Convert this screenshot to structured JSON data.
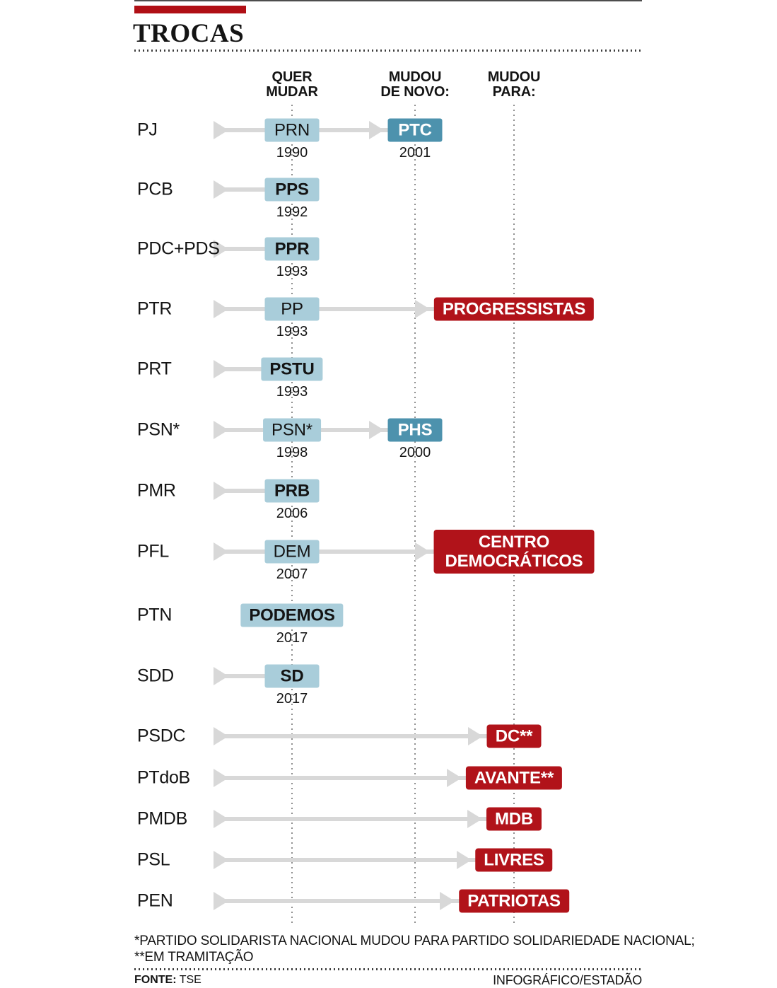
{
  "title": "TROCAS",
  "columns": [
    {
      "text": "QUER\nMUDAR"
    },
    {
      "text": "MUDOU\nDE NOVO:"
    },
    {
      "text": "MUDOU\nPARA:"
    }
  ],
  "rows": [
    {
      "label": "PJ",
      "arrow": true,
      "stage1": {
        "text": "PRN",
        "year": "1990",
        "bold": false
      },
      "stage2": {
        "text": "PTC",
        "year": "2001"
      }
    },
    {
      "label": "PCB",
      "arrow": true,
      "stage1": {
        "text": "PPS",
        "year": "1992",
        "bold": true
      }
    },
    {
      "label": "PDC+PDS",
      "arrow": true,
      "stage1": {
        "text": "PPR",
        "year": "1993",
        "bold": true
      }
    },
    {
      "label": "PTR",
      "arrow": true,
      "stage1": {
        "text": "PP",
        "year": "1993",
        "bold": false
      },
      "result": {
        "text": "PROGRESSISTAS"
      }
    },
    {
      "label": "PRT",
      "arrow": true,
      "stage1": {
        "text": "PSTU",
        "year": "1993",
        "bold": true
      }
    },
    {
      "label": "PSN*",
      "arrow": true,
      "stage1": {
        "text": "PSN*",
        "year": "1998",
        "bold": false
      },
      "stage2": {
        "text": "PHS",
        "year": "2000"
      }
    },
    {
      "label": "PMR",
      "arrow": true,
      "stage1": {
        "text": "PRB",
        "year": "2006",
        "bold": true
      }
    },
    {
      "label": "PFL",
      "arrow": true,
      "stage1": {
        "text": "DEM",
        "year": "2007",
        "bold": false
      },
      "result": {
        "text": "CENTRO\nDEMOCRÁTICOS"
      }
    },
    {
      "label": "PTN",
      "arrow": false,
      "stage1": {
        "text": "PODEMOS",
        "year": "2017",
        "bold": true
      }
    },
    {
      "label": "SDD",
      "arrow": true,
      "stage1": {
        "text": "SD",
        "year": "2017",
        "bold": true
      }
    },
    {
      "label": "PSDC",
      "arrow": true,
      "result": {
        "text": "DC**"
      }
    },
    {
      "label": "PTdoB",
      "arrow": true,
      "result": {
        "text": "AVANTE**"
      }
    },
    {
      "label": "PMDB",
      "arrow": true,
      "result": {
        "text": "MDB"
      }
    },
    {
      "label": "PSL",
      "arrow": true,
      "result": {
        "text": "LIVRES"
      }
    },
    {
      "label": "PEN",
      "arrow": true,
      "result": {
        "text": "PATRIOTAS"
      }
    }
  ],
  "footnotes": [
    "*PARTIDO SOLIDARISTA NACIONAL MUDOU PARA PARTIDO SOLIDARIEDADE NACIONAL;",
    "**EM TRAMITAÇÃO"
  ],
  "source": {
    "label": "FONTE:",
    "value": " TSE",
    "credit": "INFOGRÁFICO/ESTADÃO"
  },
  "colors": {
    "light_blue": "#a9cdda",
    "dark_blue": "#4d92ad",
    "red": "#b1131a",
    "accent_bar_red": "#b00f15",
    "arrow_gray": "#d8d8d8"
  }
}
